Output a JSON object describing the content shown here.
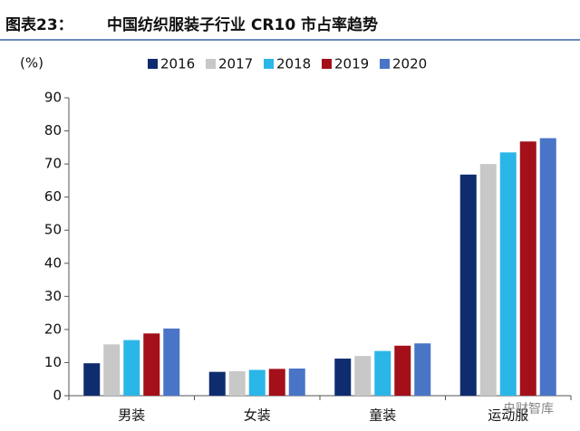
{
  "chart_data": {
    "type": "bar",
    "figure_label": "图表23：",
    "title": "中国纺织服装子行业 CR10 市占率趋势",
    "y_label": "(%)",
    "watermark": "央财智库",
    "categories": [
      "男装",
      "女装",
      "童装",
      "运动服"
    ],
    "series": [
      {
        "name": "2016",
        "color": "#0f2d6e",
        "values": [
          9.8,
          7.2,
          11.2,
          66.8
        ]
      },
      {
        "name": "2017",
        "color": "#c8c8c8",
        "values": [
          15.5,
          7.4,
          12.0,
          70.0
        ]
      },
      {
        "name": "2018",
        "color": "#2bb6e8",
        "values": [
          16.8,
          7.8,
          13.5,
          73.5
        ]
      },
      {
        "name": "2019",
        "color": "#a3101a",
        "values": [
          18.8,
          8.1,
          15.1,
          76.8
        ]
      },
      {
        "name": "2020",
        "color": "#4a74c6",
        "values": [
          20.3,
          8.2,
          15.8,
          77.8
        ]
      }
    ],
    "ylim": [
      0,
      90
    ],
    "yticks": [
      0,
      10,
      20,
      30,
      40,
      50,
      60,
      70,
      80,
      90
    ]
  }
}
